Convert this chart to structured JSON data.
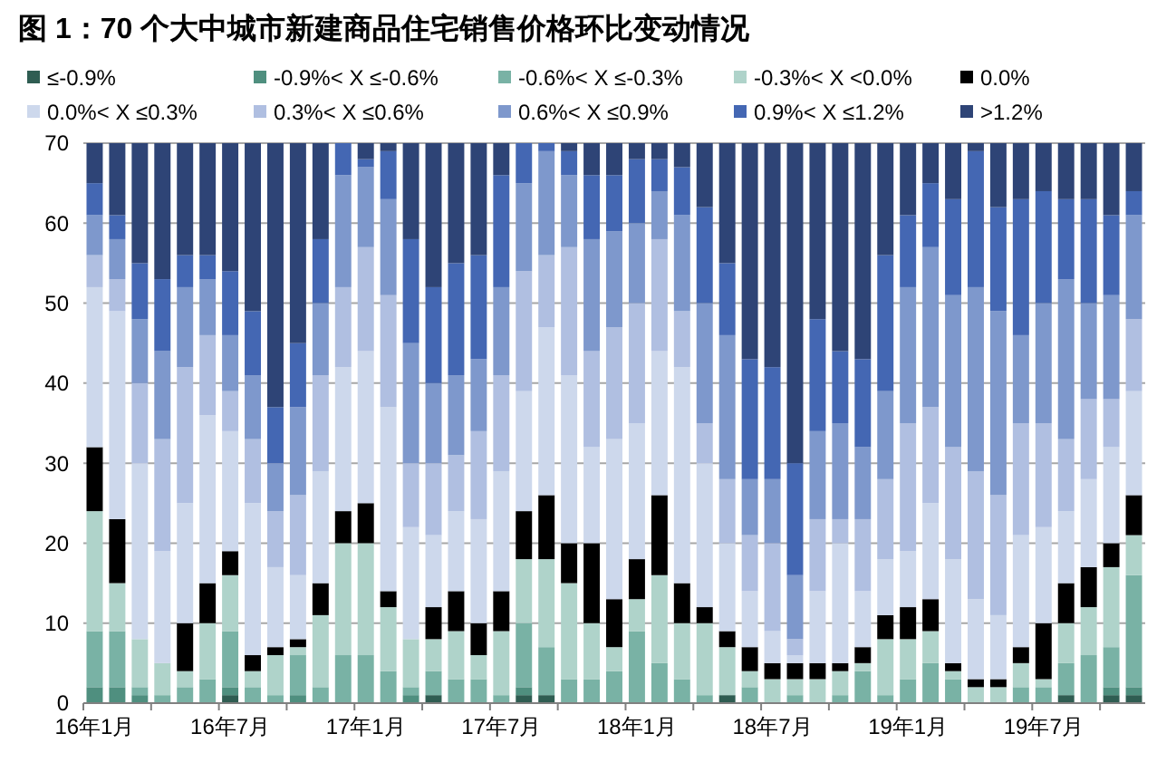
{
  "chart_data": {
    "type": "bar",
    "title": "图 1：70 个大中城市新建商品住宅销售价格环比变动情况",
    "stacked": true,
    "grid": "y",
    "legend": "top",
    "categories": [
      "16年1月",
      null,
      null,
      null,
      null,
      null,
      "16年7月",
      null,
      null,
      null,
      null,
      null,
      "17年1月",
      null,
      null,
      null,
      null,
      null,
      "17年7月",
      null,
      null,
      null,
      null,
      null,
      "18年1月",
      null,
      null,
      null,
      null,
      null,
      "18年7月",
      null,
      null,
      null,
      null,
      null,
      "19年1月",
      null,
      null,
      null,
      null,
      null,
      "19年7月",
      null,
      null,
      null,
      null
    ],
    "ylim": [
      0,
      70
    ],
    "yticks": [
      0,
      10,
      20,
      30,
      40,
      50,
      60,
      70
    ],
    "series": [
      {
        "name": "≤-0.9%",
        "color": "#2f5d52",
        "values": [
          0,
          0,
          0,
          0,
          0,
          0,
          1,
          0,
          0,
          0,
          0,
          0,
          0,
          0,
          0,
          1,
          0,
          0,
          0,
          1,
          1,
          0,
          0,
          0,
          0,
          0,
          0,
          0,
          1,
          0,
          0,
          0,
          0,
          0,
          0,
          0,
          0,
          0,
          0,
          0,
          0,
          0,
          0,
          1,
          0,
          1,
          1
        ]
      },
      {
        "name": "-0.9%< X ≤-0.6%",
        "color": "#4f8f7f",
        "values": [
          2,
          2,
          1,
          0,
          0,
          0,
          1,
          0,
          0,
          1,
          0,
          0,
          0,
          0,
          1,
          0,
          0,
          0,
          0,
          1,
          0,
          0,
          0,
          0,
          0,
          0,
          0,
          0,
          0,
          0,
          0,
          0,
          0,
          0,
          0,
          0,
          0,
          0,
          0,
          0,
          0,
          0,
          0,
          0,
          0,
          1,
          1
        ]
      },
      {
        "name": "-0.6%< X ≤-0.3%",
        "color": "#79b2a5",
        "values": [
          7,
          7,
          1,
          1,
          2,
          3,
          7,
          2,
          1,
          5,
          2,
          6,
          6,
          4,
          1,
          3,
          3,
          3,
          1,
          8,
          6,
          3,
          3,
          4,
          9,
          5,
          3,
          1,
          0,
          2,
          0,
          1,
          0,
          1,
          4,
          1,
          3,
          5,
          3,
          0,
          0,
          2,
          2,
          4,
          6,
          5,
          14
        ]
      },
      {
        "name": "-0.3%< X <0.0%",
        "color": "#afd3ca",
        "values": [
          15,
          6,
          6,
          4,
          2,
          7,
          7,
          2,
          5,
          1,
          9,
          14,
          14,
          8,
          6,
          4,
          6,
          3,
          8,
          8,
          11,
          12,
          7,
          3,
          4,
          11,
          7,
          9,
          6,
          2,
          3,
          2,
          3,
          3,
          1,
          7,
          5,
          4,
          1,
          2,
          2,
          3,
          1,
          5,
          6,
          10,
          5
        ]
      },
      {
        "name": "0.0%",
        "color": "#000000",
        "values": [
          8,
          8,
          0,
          0,
          6,
          5,
          3,
          2,
          1,
          1,
          4,
          4,
          5,
          2,
          0,
          4,
          5,
          4,
          5,
          6,
          8,
          5,
          10,
          6,
          5,
          10,
          5,
          2,
          2,
          3,
          2,
          2,
          2,
          1,
          2,
          3,
          4,
          4,
          1,
          1,
          1,
          2,
          7,
          5,
          5,
          3,
          5
        ]
      },
      {
        "name": "0.0%< X ≤0.3%",
        "color": "#cdd8ec",
        "values": [
          20,
          26,
          22,
          14,
          15,
          21,
          15,
          19,
          10,
          8,
          14,
          18,
          19,
          23,
          14,
          9,
          10,
          13,
          15,
          15,
          21,
          21,
          12,
          20,
          17,
          18,
          27,
          18,
          11,
          7,
          4,
          1,
          9,
          15,
          7,
          7,
          7,
          12,
          13,
          10,
          8,
          14,
          12,
          9,
          11,
          12,
          13
        ]
      },
      {
        "name": "0.3%< X ≤0.6%",
        "color": "#b0bfe1",
        "values": [
          4,
          4,
          10,
          14,
          17,
          10,
          5,
          8,
          7,
          10,
          12,
          10,
          13,
          14,
          8,
          9,
          7,
          11,
          12,
          15,
          9,
          16,
          12,
          14,
          15,
          14,
          7,
          5,
          8,
          7,
          11,
          2,
          9,
          3,
          9,
          10,
          16,
          12,
          14,
          16,
          15,
          14,
          13,
          9,
          10,
          6,
          9
        ]
      },
      {
        "name": "0.6%< X ≤0.9%",
        "color": "#7e98cc",
        "values": [
          5,
          5,
          8,
          11,
          10,
          7,
          7,
          8,
          6,
          11,
          9,
          14,
          10,
          12,
          15,
          10,
          10,
          9,
          11,
          11,
          13,
          9,
          14,
          12,
          10,
          6,
          12,
          15,
          18,
          7,
          8,
          8,
          11,
          12,
          9,
          11,
          17,
          20,
          19,
          23,
          23,
          11,
          15,
          20,
          12,
          13,
          13
        ]
      },
      {
        "name": "0.9%< X ≤1.2%",
        "color": "#4467b3",
        "values": [
          4,
          3,
          7,
          9,
          4,
          3,
          8,
          8,
          7,
          8,
          8,
          4,
          1,
          6,
          13,
          12,
          14,
          13,
          14,
          5,
          1,
          3,
          8,
          7,
          8,
          4,
          6,
          12,
          9,
          15,
          14,
          14,
          14,
          9,
          11,
          17,
          9,
          8,
          12,
          17,
          13,
          17,
          14,
          10,
          13,
          10,
          3
        ]
      },
      {
        "name": ">1.2%",
        "color": "#2e4476",
        "values": [
          5,
          9,
          15,
          17,
          14,
          14,
          16,
          21,
          33,
          25,
          12,
          0,
          2,
          1,
          12,
          18,
          15,
          14,
          4,
          0,
          0,
          1,
          4,
          4,
          2,
          2,
          3,
          8,
          15,
          27,
          28,
          40,
          22,
          26,
          27,
          14,
          9,
          5,
          7,
          1,
          8,
          7,
          6,
          7,
          7,
          9,
          6
        ]
      }
    ]
  }
}
